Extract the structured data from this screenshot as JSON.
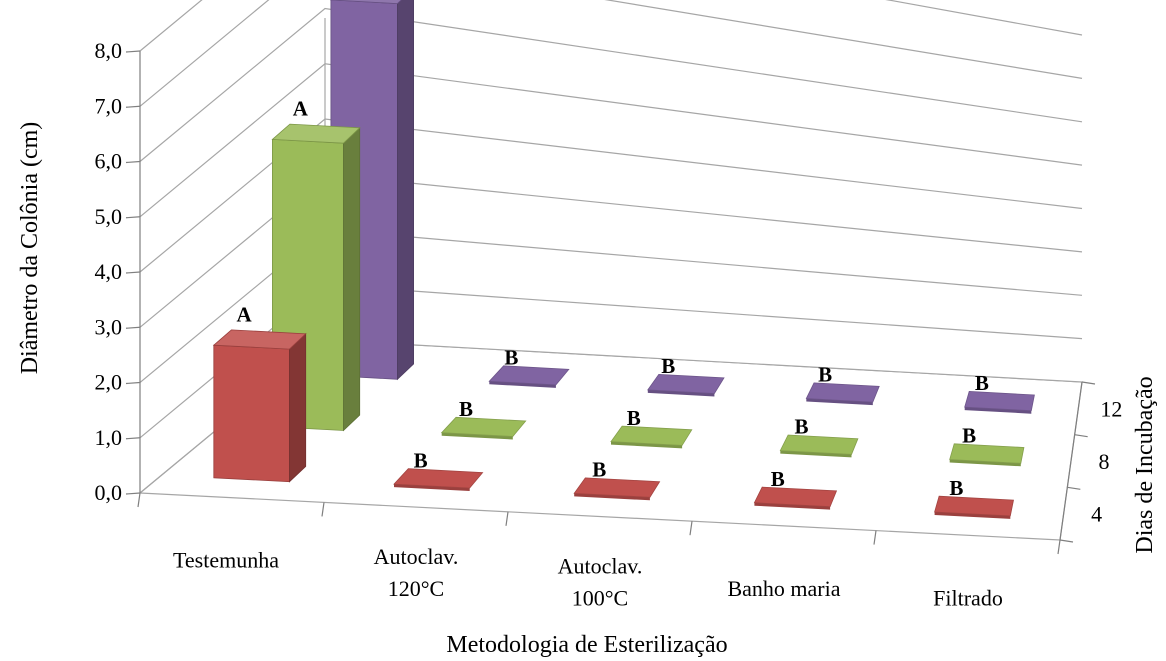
{
  "chart_data": {
    "type": "bar",
    "subtype": "3d-column",
    "categories": [
      "Testemunha",
      "Autoclav. 120°C",
      "Autoclav. 100°C",
      "Banho maria",
      "Filtrado"
    ],
    "category_lines": [
      [
        "Testemunha"
      ],
      [
        "Autoclav.",
        "120°C"
      ],
      [
        "Autoclav.",
        "100°C"
      ],
      [
        "Banho maria"
      ],
      [
        "Filtrado"
      ]
    ],
    "series": [
      {
        "name": "4",
        "values": [
          2.4,
          0.0,
          0.0,
          0.0,
          0.0
        ],
        "labels": [
          "A",
          "B",
          "B",
          "B",
          "B"
        ],
        "color": "#C0504D"
      },
      {
        "name": "8",
        "values": [
          5.2,
          0.0,
          0.0,
          0.0,
          0.0
        ],
        "labels": [
          "A",
          "B",
          "B",
          "B",
          "B"
        ],
        "color": "#9BBB59"
      },
      {
        "name": "12",
        "values": [
          6.8,
          0.0,
          0.0,
          0.0,
          0.0
        ],
        "labels": [
          "A",
          "B",
          "B",
          "B",
          "B"
        ],
        "color": "#8064A2"
      }
    ],
    "ylim": [
      0,
      8
    ],
    "yticks": [
      "0,0",
      "1,0",
      "2,0",
      "3,0",
      "4,0",
      "5,0",
      "6,0",
      "7,0",
      "8,0"
    ],
    "xlabel": "Metodologia de Esterilização",
    "ylabel": "Diâmetro da Colônia (cm)",
    "zlabel": "Dias de Incubação",
    "grid": true,
    "legend": "none"
  }
}
